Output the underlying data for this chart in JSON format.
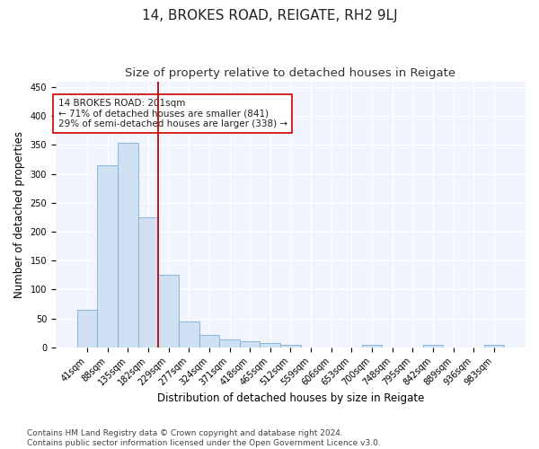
{
  "title": "14, BROKES ROAD, REIGATE, RH2 9LJ",
  "subtitle": "Size of property relative to detached houses in Reigate",
  "xlabel": "Distribution of detached houses by size in Reigate",
  "ylabel": "Number of detached properties",
  "categories": [
    "41sqm",
    "88sqm",
    "135sqm",
    "182sqm",
    "229sqm",
    "277sqm",
    "324sqm",
    "371sqm",
    "418sqm",
    "465sqm",
    "512sqm",
    "559sqm",
    "606sqm",
    "653sqm",
    "700sqm",
    "748sqm",
    "795sqm",
    "842sqm",
    "889sqm",
    "936sqm",
    "983sqm"
  ],
  "values": [
    65,
    315,
    353,
    225,
    126,
    45,
    22,
    14,
    10,
    7,
    4,
    0,
    0,
    0,
    4,
    0,
    0,
    4,
    0,
    0,
    4
  ],
  "bar_color": "#cfe0f3",
  "bar_edge_color": "#7bafd4",
  "vline_x": 3.5,
  "vline_color": "#cc0000",
  "annotation_text": "14 BROKES ROAD: 201sqm\n← 71% of detached houses are smaller (841)\n29% of semi-detached houses are larger (338) →",
  "annotation_box_color": "#ffffff",
  "annotation_box_edge": "#cc0000",
  "ylim": [
    0,
    460
  ],
  "yticks": [
    0,
    50,
    100,
    150,
    200,
    250,
    300,
    350,
    400,
    450
  ],
  "footer_line1": "Contains HM Land Registry data © Crown copyright and database right 2024.",
  "footer_line2": "Contains public sector information licensed under the Open Government Licence v3.0.",
  "bg_color": "#ffffff",
  "plot_bg_color": "#f0f4fc",
  "title_fontsize": 11,
  "subtitle_fontsize": 9.5,
  "axis_label_fontsize": 8.5,
  "tick_fontsize": 7,
  "footer_fontsize": 6.5,
  "grid_color": "#ffffff"
}
